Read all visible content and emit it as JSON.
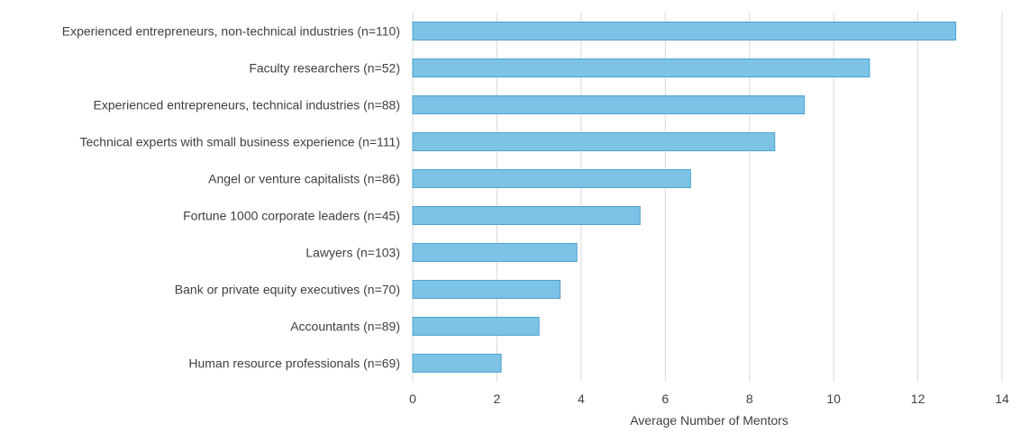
{
  "chart_data": {
    "type": "bar",
    "orientation": "horizontal",
    "categories": [
      "Experienced entrepreneurs, non-technical industries (n=110)",
      "Faculty researchers (n=52)",
      "Experienced entrepreneurs, technical industries (n=88)",
      "Technical experts with small business experience (n=111)",
      "Angel or venture capitalists (n=86)",
      "Fortune 1000 corporate leaders (n=45)",
      "Lawyers (n=103)",
      "Bank or private equity executives (n=70)",
      "Accountants (n=89)",
      "Human resource professionals (n=69)"
    ],
    "values": [
      12.9,
      10.85,
      9.3,
      8.6,
      6.6,
      5.4,
      3.9,
      3.5,
      3.0,
      2.1
    ],
    "xlabel": "Average Number  of Mentors",
    "xlim": [
      0,
      14
    ],
    "xticks": [
      0,
      2,
      4,
      6,
      8,
      10,
      12,
      14
    ],
    "grid": "vertical",
    "legend": "none",
    "colors": {
      "bar": "#7cc3e6",
      "bar_stroke": "#4ea2cf",
      "grid": "#d9d9d9",
      "text": "#404040"
    }
  }
}
